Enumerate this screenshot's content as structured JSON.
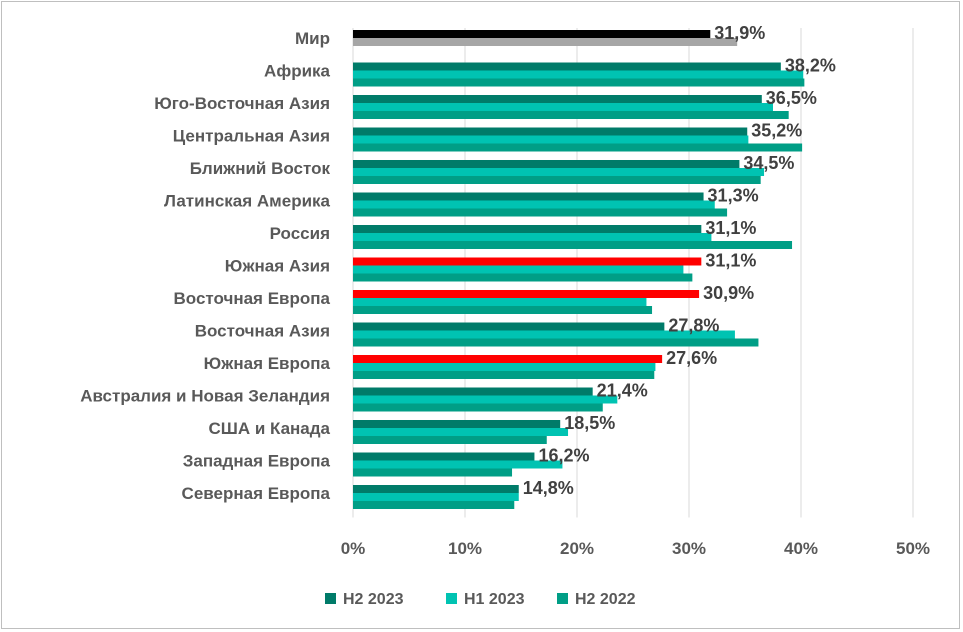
{
  "chart_data": {
    "type": "bar",
    "orientation": "horizontal",
    "categories": [
      "Мир",
      "Африка",
      "Юго-Восточная Азия",
      "Центральная Азия",
      "Ближний Восток",
      "Латинская Америка",
      "Россия",
      "Южная Азия",
      "Восточная Европа",
      "Восточная Азия",
      "Южная Европа",
      "Австралия и Новая Зеландия",
      "США и Канада",
      "Западная Европа",
      "Северная Европа"
    ],
    "series": [
      {
        "name": "H2 2023",
        "color": "#007B69",
        "values": [
          31.9,
          38.2,
          36.5,
          35.2,
          34.5,
          31.3,
          31.1,
          31.1,
          30.9,
          27.8,
          27.6,
          21.4,
          18.5,
          16.2,
          14.8
        ]
      },
      {
        "name": "H1 2023",
        "color": "#00C3B2",
        "values": [
          34.3,
          40.2,
          37.5,
          35.3,
          36.7,
          32.3,
          32.0,
          29.5,
          26.2,
          34.1,
          27.0,
          23.6,
          19.2,
          18.7,
          14.8
        ]
      },
      {
        "name": "H2 2022",
        "color": "#009E86",
        "values": [
          null,
          40.3,
          38.9,
          40.1,
          36.4,
          33.4,
          39.2,
          30.3,
          26.7,
          36.2,
          26.9,
          22.3,
          17.3,
          14.2,
          14.4
        ]
      }
    ],
    "bar_colors": {
      "world_current": "#000000",
      "world_previous": "#A6A6A6",
      "highlight": "#FF0000"
    },
    "highlight_rows": [
      "Южная Азия",
      "Восточная Европа",
      "Южная Европа"
    ],
    "data_labels": [
      "31,9%",
      "38,2%",
      "36,5%",
      "35,2%",
      "34,5%",
      "31,3%",
      "31,1%",
      "31,1%",
      "30,9%",
      "27,8%",
      "27,6%",
      "21,4%",
      "18,5%",
      "16,2%",
      "14,8%"
    ],
    "x_ticks": [
      "0%",
      "10%",
      "20%",
      "30%",
      "40%",
      "50%"
    ],
    "xlim": [
      0,
      50
    ],
    "grid": true,
    "legend_position": "bottom",
    "legend": [
      "H2 2023",
      "H1 2023",
      "H2 2022"
    ]
  }
}
